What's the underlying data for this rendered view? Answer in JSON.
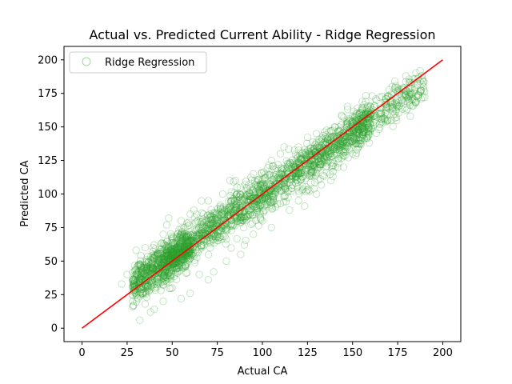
{
  "chart_data": {
    "type": "scatter",
    "title": "Actual vs. Predicted Current Ability - Ridge Regression",
    "xlabel": "Actual CA",
    "ylabel": "Predicted CA",
    "xlim": [
      -10,
      210
    ],
    "ylim": [
      -10,
      210
    ],
    "xticks": [
      0,
      25,
      50,
      75,
      100,
      125,
      150,
      175,
      200
    ],
    "yticks": [
      0,
      25,
      50,
      75,
      100,
      125,
      150,
      175,
      200
    ],
    "grid": false,
    "legend": {
      "placement": "top-left",
      "entries": [
        "Ridge Regression"
      ]
    },
    "series": [
      {
        "name": "Ridge Regression",
        "kind": "scatter",
        "marker": "hollow-circle",
        "color": "#2ca02c",
        "alpha": 0.3,
        "trend": {
          "slope": 0.93,
          "intercept": 6.5,
          "noise_sd": 7.5
        },
        "x_range": [
          22,
          192
        ],
        "approx_count": 2600,
        "points": [
          [
            32,
            6
          ],
          [
            38,
            12
          ],
          [
            40,
            14
          ],
          [
            28,
            16
          ],
          [
            35,
            18
          ],
          [
            31,
            22
          ],
          [
            45,
            20
          ],
          [
            55,
            22
          ],
          [
            60,
            26
          ],
          [
            50,
            30
          ],
          [
            33,
            45
          ],
          [
            28,
            36
          ],
          [
            25,
            40
          ],
          [
            22,
            33
          ],
          [
            70,
            36
          ],
          [
            73,
            42
          ],
          [
            65,
            40
          ],
          [
            80,
            50
          ],
          [
            88,
            55
          ],
          [
            90,
            62
          ],
          [
            95,
            70
          ],
          [
            105,
            75
          ],
          [
            100,
            80
          ],
          [
            115,
            88
          ],
          [
            120,
            95
          ],
          [
            130,
            100
          ],
          [
            138,
            110
          ],
          [
            145,
            120
          ],
          [
            150,
            130
          ],
          [
            155,
            140
          ],
          [
            160,
            148
          ],
          [
            165,
            152
          ],
          [
            168,
            160
          ],
          [
            172,
            165
          ],
          [
            175,
            170
          ],
          [
            178,
            178
          ],
          [
            180,
            172
          ],
          [
            185,
            168
          ],
          [
            188,
            171
          ],
          [
            190,
            172
          ],
          [
            182,
            158
          ],
          [
            176,
            176
          ],
          [
            160,
            165
          ],
          [
            150,
            158
          ],
          [
            140,
            150
          ],
          [
            130,
            145
          ],
          [
            120,
            135
          ],
          [
            110,
            130
          ],
          [
            105,
            125
          ],
          [
            95,
            115
          ],
          [
            85,
            110
          ],
          [
            78,
            100
          ],
          [
            70,
            95
          ],
          [
            60,
            85
          ],
          [
            55,
            80
          ],
          [
            45,
            70
          ],
          [
            40,
            62
          ],
          [
            35,
            60
          ],
          [
            30,
            58
          ],
          [
            48,
            82
          ],
          [
            62,
            88
          ],
          [
            82,
            110
          ],
          [
            112,
            135
          ]
        ]
      },
      {
        "name": "",
        "kind": "line",
        "color": "#ff0000",
        "points": [
          [
            0,
            0
          ],
          [
            200,
            200
          ]
        ]
      }
    ]
  }
}
